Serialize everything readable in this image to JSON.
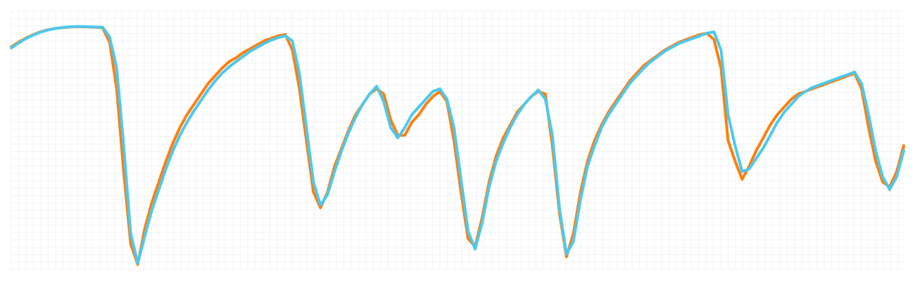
{
  "chart_data": {
    "type": "line",
    "title": "",
    "xlabel": "",
    "ylabel": "",
    "grid": true,
    "legend": "none",
    "xlim": [
      0,
      127
    ],
    "ylim": [
      0,
      100
    ],
    "x": [
      0,
      1,
      2,
      3,
      4,
      5,
      6,
      7,
      8,
      9,
      10,
      11,
      12,
      13,
      14,
      15,
      16,
      17,
      18,
      19,
      20,
      21,
      22,
      23,
      24,
      25,
      26,
      27,
      28,
      29,
      30,
      31,
      32,
      33,
      34,
      35,
      36,
      37,
      38,
      39,
      40,
      41,
      42,
      43,
      44,
      45,
      46,
      47,
      48,
      49,
      50,
      51,
      52,
      53,
      54,
      55,
      56,
      57,
      58,
      59,
      60,
      61,
      62,
      63,
      64,
      65,
      66,
      67,
      68,
      69,
      70,
      71,
      72,
      73,
      74,
      75,
      76,
      77,
      78,
      79,
      80,
      81,
      82,
      83,
      84,
      85,
      86,
      87,
      88,
      89,
      90,
      91,
      92,
      93,
      94,
      95,
      96,
      97,
      98,
      99,
      100,
      101,
      102,
      103,
      104,
      105,
      106,
      107,
      108,
      109,
      110,
      111,
      112,
      113,
      114,
      115,
      116,
      117,
      118,
      119,
      120,
      121,
      122,
      123,
      124,
      125,
      126,
      127
    ],
    "series": [
      {
        "color": "#ff7f0e",
        "values": [
          86.2,
          88.0,
          89.5,
          90.8,
          91.9,
          92.7,
          93.2,
          93.6,
          93.8,
          94.0,
          94.0,
          93.9,
          93.8,
          93.6,
          88.0,
          70.0,
          38.0,
          10.0,
          2.0,
          16.0,
          26.0,
          34.0,
          42.0,
          49.0,
          55.0,
          60.0,
          64.0,
          68.0,
          72.0,
          75.0,
          78.0,
          80.5,
          82.0,
          84.0,
          85.5,
          87.0,
          88.5,
          89.5,
          90.5,
          91.0,
          85.0,
          70.0,
          50.0,
          30.0,
          24.0,
          30.0,
          40.0,
          47.0,
          54.0,
          60.0,
          64.0,
          68.0,
          70.0,
          68.0,
          58.0,
          52.0,
          52.0,
          57.0,
          60.0,
          64.0,
          67.0,
          69.0,
          65.0,
          50.0,
          30.0,
          12.0,
          9.0,
          20.0,
          34.0,
          44.0,
          51.0,
          56.0,
          61.0,
          64.0,
          67.0,
          69.0,
          68.0,
          48.0,
          22.0,
          5.0,
          14.0,
          30.0,
          42.0,
          50.0,
          56.0,
          61.0,
          65.0,
          69.0,
          73.0,
          76.0,
          79.0,
          81.0,
          83.0,
          85.0,
          86.5,
          88.0,
          89.0,
          90.0,
          91.0,
          91.5,
          89.0,
          78.0,
          50.0,
          42.0,
          35.0,
          40.0,
          46.0,
          51.0,
          56.0,
          60.0,
          63.0,
          66.0,
          68.0,
          69.0,
          70.0,
          71.0,
          72.0,
          73.0,
          74.0,
          75.0,
          76.0,
          70.0,
          55.0,
          42.0,
          34.0,
          32.0,
          38.0,
          48.0
        ]
      },
      {
        "color": "#4cc9f0",
        "values": [
          85.8,
          87.6,
          89.3,
          90.6,
          91.7,
          92.6,
          93.2,
          93.6,
          93.9,
          94.1,
          94.1,
          94.0,
          93.9,
          93.8,
          90.0,
          78.0,
          48.0,
          14.0,
          2.5,
          13.0,
          23.0,
          31.0,
          39.0,
          46.0,
          52.0,
          57.0,
          61.5,
          65.5,
          69.5,
          73.0,
          76.0,
          78.5,
          80.5,
          82.5,
          84.5,
          86.0,
          87.5,
          88.8,
          89.8,
          90.5,
          88.5,
          76.0,
          55.0,
          34.0,
          25.0,
          29.0,
          38.0,
          46.0,
          53.0,
          59.0,
          64.0,
          68.0,
          71.0,
          65.0,
          55.0,
          51.0,
          55.0,
          60.0,
          63.0,
          66.0,
          69.0,
          70.0,
          66.0,
          55.0,
          35.0,
          15.0,
          8.0,
          18.0,
          32.0,
          42.0,
          49.0,
          55.0,
          60.0,
          64.0,
          67.0,
          69.5,
          66.0,
          52.0,
          24.0,
          6.0,
          11.0,
          27.0,
          40.0,
          48.0,
          55.0,
          60.0,
          64.0,
          68.0,
          72.0,
          75.0,
          78.0,
          80.5,
          82.5,
          84.5,
          86.0,
          87.5,
          88.5,
          89.5,
          90.5,
          91.5,
          92.0,
          85.0,
          60.0,
          48.0,
          38.0,
          39.0,
          43.0,
          47.0,
          52.0,
          57.0,
          61.0,
          64.0,
          67.0,
          69.0,
          70.5,
          71.5,
          72.5,
          73.5,
          74.5,
          75.5,
          76.5,
          72.0,
          60.0,
          46.0,
          36.0,
          31.0,
          36.0,
          46.0
        ]
      }
    ]
  }
}
